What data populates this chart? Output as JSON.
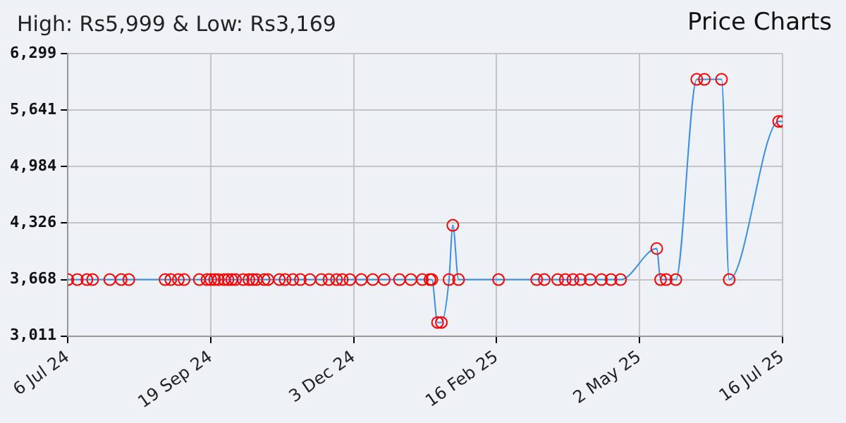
{
  "chart_data": {
    "type": "line",
    "title": "High: Rs5,999 & Low: Rs3,169",
    "subtitle": "Price Charts",
    "color": "#3a8ee6",
    "marker": "circle",
    "grid": true,
    "x": [
      "2024-07-06",
      "2024-07-11",
      "2024-07-16",
      "2024-07-19",
      "2024-07-28",
      "2024-08-03",
      "2024-08-07",
      "2024-08-26",
      "2024-08-29",
      "2024-09-02",
      "2024-09-05",
      "2024-09-13",
      "2024-09-17",
      "2024-09-19",
      "2024-09-21",
      "2024-09-23",
      "2024-09-26",
      "2024-09-28",
      "2024-09-30",
      "2024-10-02",
      "2024-10-06",
      "2024-10-09",
      "2024-10-11",
      "2024-10-13",
      "2024-10-17",
      "2024-10-19",
      "2024-10-25",
      "2024-10-28",
      "2024-11-01",
      "2024-11-05",
      "2024-11-10",
      "2024-11-16",
      "2024-11-20",
      "2024-11-24",
      "2024-11-27",
      "2024-12-01",
      "2024-12-07",
      "2024-12-13",
      "2024-12-19",
      "2024-12-27",
      "2025-01-02",
      "2025-01-08",
      "2025-01-12",
      "2025-01-13",
      "2025-01-16",
      "2025-01-18",
      "2025-01-22",
      "2025-01-24",
      "2025-01-27",
      "2025-02-17",
      "2025-03-09",
      "2025-03-13",
      "2025-03-20",
      "2025-03-24",
      "2025-03-28",
      "2025-04-01",
      "2025-04-06",
      "2025-04-12",
      "2025-04-17",
      "2025-04-22",
      "2025-05-11",
      "2025-05-13",
      "2025-05-16",
      "2025-05-21",
      "2025-06-01",
      "2025-06-05",
      "2025-06-14",
      "2025-06-18",
      "2025-07-14",
      "2025-07-16"
    ],
    "values": [
      3668,
      3668,
      3668,
      3668,
      3668,
      3668,
      3668,
      3668,
      3668,
      3668,
      3668,
      3668,
      3668,
      3668,
      3668,
      3668,
      3668,
      3668,
      3668,
      3668,
      3668,
      3668,
      3668,
      3668,
      3668,
      3668,
      3668,
      3668,
      3668,
      3668,
      3668,
      3668,
      3668,
      3668,
      3668,
      3668,
      3668,
      3668,
      3668,
      3668,
      3668,
      3668,
      3668,
      3668,
      3169,
      3169,
      3668,
      4300,
      3668,
      3668,
      3668,
      3668,
      3668,
      3668,
      3668,
      3668,
      3668,
      3668,
      3668,
      3668,
      4030,
      3668,
      3668,
      3668,
      5999,
      5999,
      5999,
      3668,
      5510,
      5510
    ],
    "xlim": [
      "2024-07-06",
      "2025-07-16"
    ],
    "xticks": [
      {
        "value": "2024-07-06",
        "label": "6 Jul 24"
      },
      {
        "value": "2024-09-19",
        "label": "19 Sep 24"
      },
      {
        "value": "2024-12-03",
        "label": "3 Dec 24"
      },
      {
        "value": "2025-02-16",
        "label": "16 Feb 25"
      },
      {
        "value": "2025-05-02",
        "label": "2 May 25"
      },
      {
        "value": "2025-07-16",
        "label": "16 Jul 25"
      }
    ],
    "ylim": [
      3011,
      6299
    ],
    "yticks": [
      {
        "value": 3011,
        "label": "3,011"
      },
      {
        "value": 3668,
        "label": "3,668"
      },
      {
        "value": 4326,
        "label": "4,326"
      },
      {
        "value": 4984,
        "label": "4,984"
      },
      {
        "value": 5641,
        "label": "5,641"
      },
      {
        "value": 6299,
        "label": "6,299"
      }
    ]
  }
}
